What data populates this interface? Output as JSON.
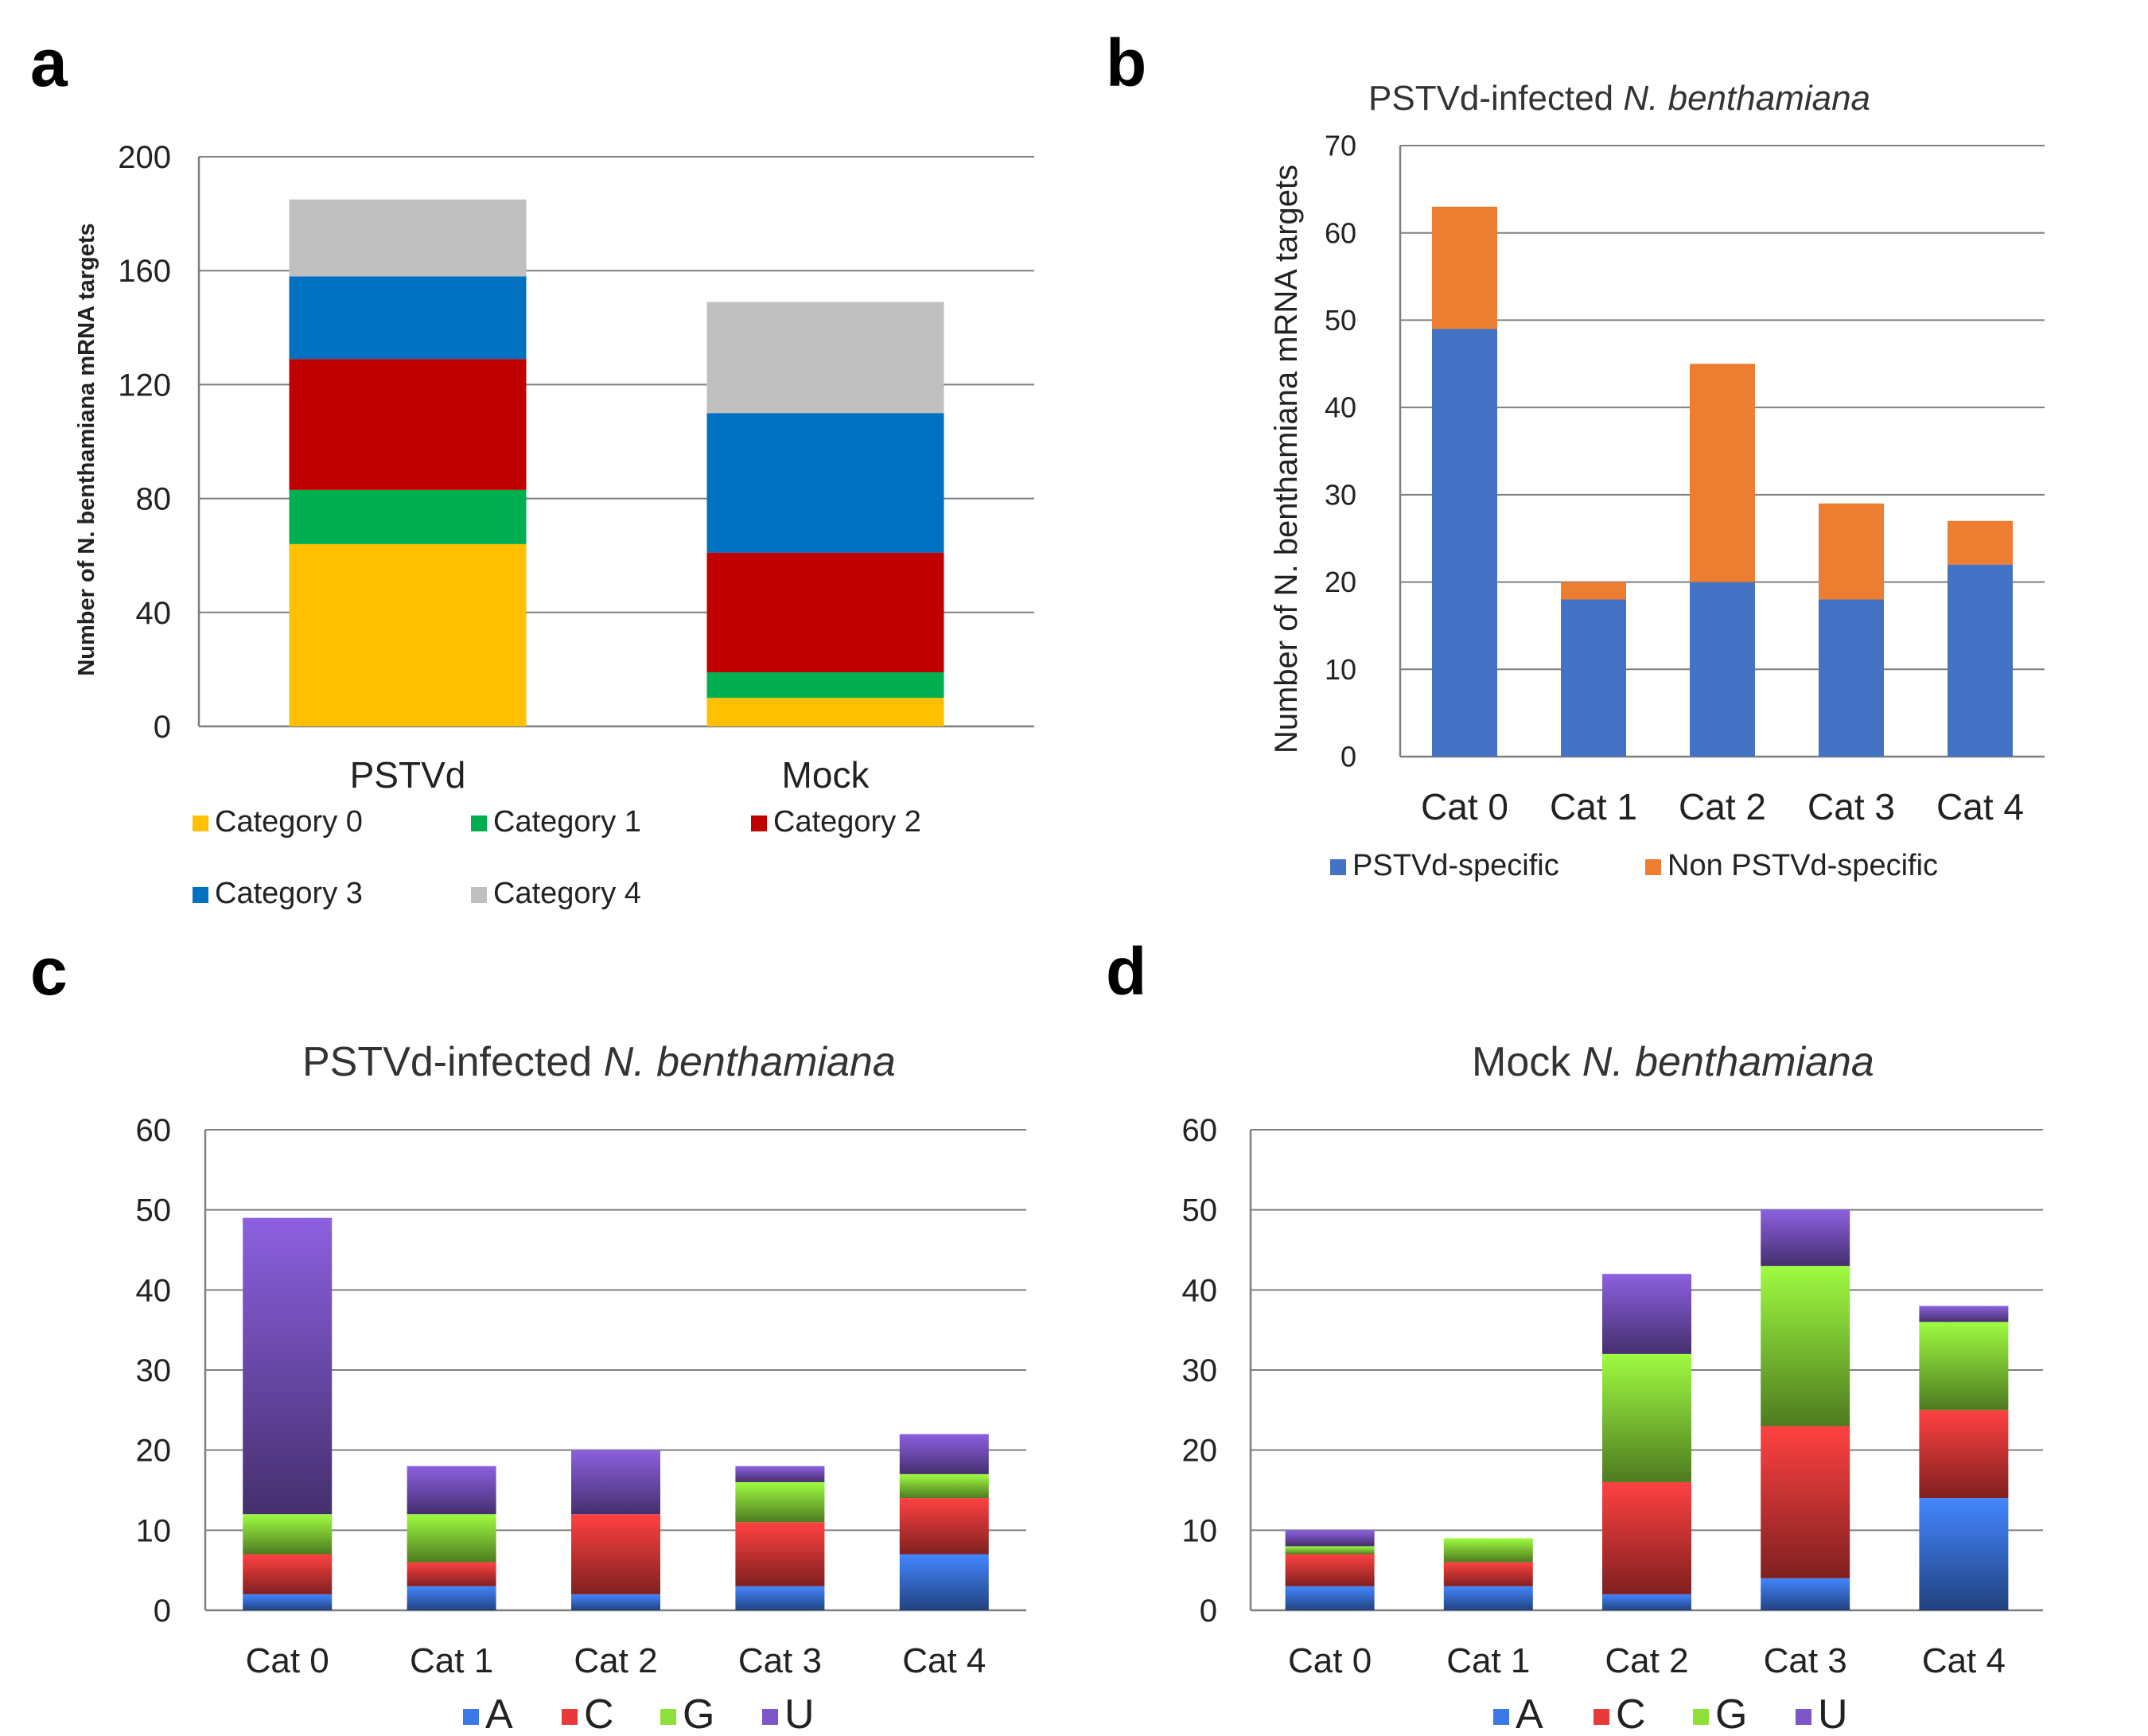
{
  "chart_data": [
    {
      "panel": "a",
      "type": "bar",
      "stacked": true,
      "title": "",
      "xlabel": "",
      "ylabel": "Number of N. benthamiana mRNA targets",
      "ylim": [
        0,
        200
      ],
      "yticks": [
        0,
        40,
        80,
        120,
        160,
        200
      ],
      "categories": [
        "PSTVd",
        "Mock"
      ],
      "series": [
        {
          "name": "Category 0",
          "color": "#ffc000",
          "values": [
            64,
            10
          ]
        },
        {
          "name": "Category 1",
          "color": "#00b050",
          "values": [
            19,
            9
          ]
        },
        {
          "name": "Category 2",
          "color": "#c00000",
          "values": [
            46,
            42
          ]
        },
        {
          "name": "Category 3",
          "color": "#0070c0",
          "values": [
            29,
            49
          ]
        },
        {
          "name": "Category 4",
          "color": "#bfbfbf",
          "values": [
            27,
            39
          ]
        }
      ],
      "grid": true,
      "legend": "bottom"
    },
    {
      "panel": "b",
      "type": "bar",
      "stacked": true,
      "title": "PSTVd-infected ",
      "title_italic": "N. benthamiana",
      "xlabel": "",
      "ylabel": "Number of N. benthamiana mRNA targets",
      "ylim": [
        0,
        70
      ],
      "yticks": [
        0,
        10,
        20,
        30,
        40,
        50,
        60,
        70
      ],
      "categories": [
        "Cat 0",
        "Cat 1",
        "Cat 2",
        "Cat 3",
        "Cat 4"
      ],
      "series": [
        {
          "name": "PSTVd-specific",
          "color": "#4472c4",
          "values": [
            49,
            18,
            20,
            18,
            22
          ]
        },
        {
          "name": "Non PSTVd-specific",
          "color": "#ed7d31",
          "values": [
            14,
            2,
            25,
            11,
            5
          ]
        }
      ],
      "grid": true,
      "legend": "bottom"
    },
    {
      "panel": "c",
      "type": "bar",
      "stacked": true,
      "title": "PSTVd-infected ",
      "title_italic": "N. benthamiana",
      "xlabel": "",
      "ylabel": "",
      "ylim": [
        0,
        60
      ],
      "yticks": [
        0,
        10,
        20,
        30,
        40,
        50,
        60
      ],
      "categories": [
        "Cat 0",
        "Cat 1",
        "Cat 2",
        "Cat 3",
        "Cat 4"
      ],
      "series": [
        {
          "name": "A",
          "color": "#3c78e6",
          "values": [
            2,
            3,
            2,
            3,
            7
          ]
        },
        {
          "name": "C",
          "color": "#e83a3a",
          "values": [
            5,
            3,
            10,
            8,
            7
          ]
        },
        {
          "name": "G",
          "color": "#8ee03a",
          "values": [
            5,
            6,
            0,
            5,
            3
          ]
        },
        {
          "name": "U",
          "color": "#7d56c8",
          "values": [
            37,
            6,
            8,
            2,
            5
          ]
        }
      ],
      "grid": true,
      "legend": "bottom"
    },
    {
      "panel": "d",
      "type": "bar",
      "stacked": true,
      "title": "Mock ",
      "title_italic": "N. benthamiana",
      "xlabel": "",
      "ylabel": "",
      "ylim": [
        0,
        60
      ],
      "yticks": [
        0,
        10,
        20,
        30,
        40,
        50,
        60
      ],
      "categories": [
        "Cat 0",
        "Cat 1",
        "Cat 2",
        "Cat 3",
        "Cat 4"
      ],
      "series": [
        {
          "name": "A",
          "color": "#3c78e6",
          "values": [
            3,
            3,
            2,
            4,
            14
          ]
        },
        {
          "name": "C",
          "color": "#e83a3a",
          "values": [
            4,
            3,
            14,
            19,
            11
          ]
        },
        {
          "name": "G",
          "color": "#8ee03a",
          "values": [
            1,
            3,
            16,
            20,
            11
          ]
        },
        {
          "name": "U",
          "color": "#7d56c8",
          "values": [
            2,
            0,
            10,
            7,
            2
          ]
        }
      ],
      "grid": true,
      "legend": "bottom"
    }
  ]
}
